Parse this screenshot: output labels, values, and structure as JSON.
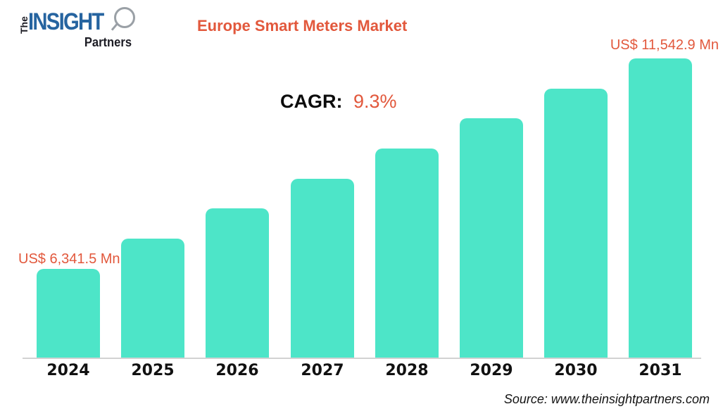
{
  "header": {
    "logo": {
      "the": "The",
      "insight": "INSIGHT",
      "partners": "Partners"
    },
    "title": "Europe Smart Meters Market"
  },
  "cagr": {
    "label": "CAGR:",
    "value": "9.3%"
  },
  "chart_data": {
    "type": "bar",
    "title": "Europe Smart Meters Market",
    "categories": [
      "2024",
      "2025",
      "2026",
      "2027",
      "2028",
      "2029",
      "2030",
      "2031"
    ],
    "values": [
      6341.5,
      7084.6,
      7827.6,
      8570.7,
      9313.7,
      10056.8,
      10799.8,
      11542.9
    ],
    "unit": "US$ Mn",
    "cagr_pct": 9.3,
    "annotations": {
      "first_bar": "US$ 6,341.5 Mn",
      "last_bar": "US$ 11,542.9 Mn"
    },
    "ylim": [
      4140,
      11542.9
    ],
    "grid": false,
    "legend": false,
    "bar_color": "#4de5c8",
    "xlabel": "",
    "ylabel": ""
  },
  "footer": {
    "source": "Source: www.theinsightpartners.com"
  },
  "colors": {
    "accent_orange": "#e2583c",
    "bar_teal": "#4de5c8",
    "logo_blue": "#2664a0",
    "axis_gray": "#d2d2d2"
  }
}
